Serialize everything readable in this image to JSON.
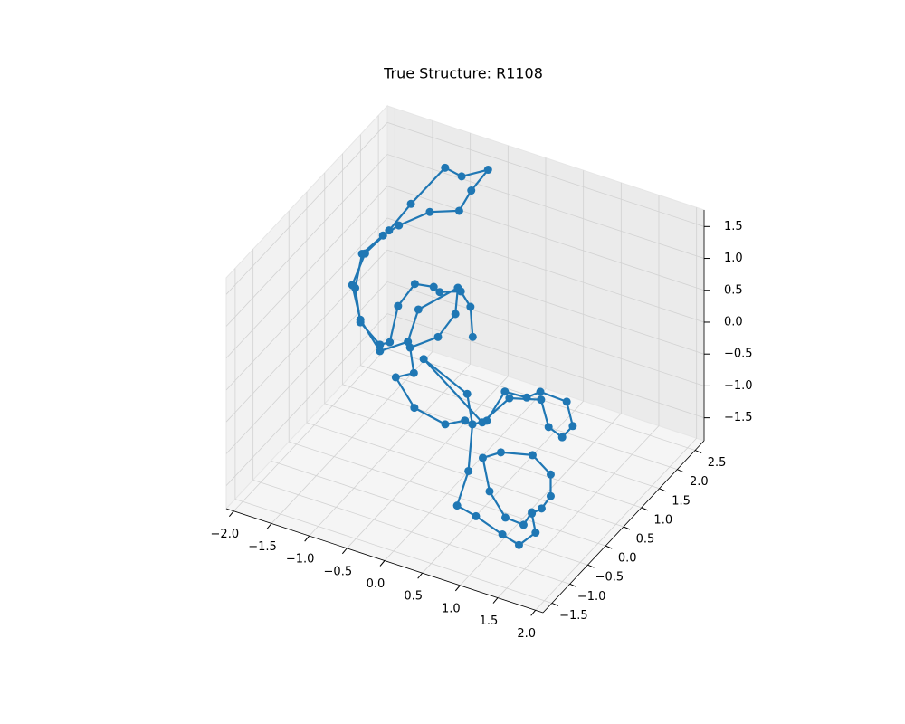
{
  "chart_data": {
    "type": "line3d",
    "title": "True Structure: R1108",
    "color": "#1f77b4",
    "grid": true,
    "x": [
      0.1,
      0.07,
      -0.38,
      -0.66,
      -0.74,
      -0.99,
      -0.89,
      -1.0,
      -1.13,
      -1.39,
      -1.78,
      -1.69,
      -1.73,
      -1.52,
      -1.11,
      -0.72,
      -0.56,
      -0.66,
      -1.01,
      -1.23,
      -1.36,
      -1.65,
      -1.65,
      -1.82,
      -1.39,
      -1.13,
      -0.76,
      -0.62,
      -0.42,
      -0.13,
      -0.36,
      -0.73,
      -0.68,
      -0.92,
      -0.46,
      -0.05,
      0.21,
      0.31,
      0.5,
      0.74,
      1.03,
      1.21,
      1.56,
      1.64,
      1.5,
      1.32,
      1.22,
      0.8,
      0.44,
      -0.55,
      0.24,
      0.31,
      0.58,
      0.43,
      0.68,
      1.03,
      1.25,
      1.47,
      1.42,
      1.55,
      1.67,
      1.67,
      1.43,
      1.01,
      0.77,
      0.86,
      1.07,
      1.31,
      1.42
    ],
    "y": [
      0.5,
      0.5,
      1.18,
      1.18,
      1.18,
      1.18,
      0.5,
      0.5,
      0.5,
      0.5,
      1.18,
      1.18,
      1.85,
      1.85,
      1.85,
      1.85,
      1.85,
      2.53,
      2.53,
      2.53,
      1.85,
      1.85,
      1.18,
      1.18,
      0.5,
      0.5,
      0.5,
      0.5,
      1.18,
      0.5,
      0.5,
      0.5,
      0.5,
      0.5,
      0.05,
      0.05,
      0.05,
      0.05,
      0.05,
      0.05,
      0.05,
      0.05,
      0.05,
      0.05,
      0.05,
      0.05,
      0.05,
      0.05,
      0.05,
      0.5,
      0.05,
      0.05,
      -0.63,
      -0.63,
      -0.63,
      -0.63,
      -0.63,
      -0.63,
      -0.63,
      -0.63,
      -0.63,
      -0.63,
      -0.63,
      -0.63,
      -0.63,
      -0.63,
      -0.63,
      -0.63,
      -0.63
    ],
    "z": [
      0.34,
      0.8,
      0.46,
      0.34,
      0.39,
      0.34,
      0.44,
      -0.17,
      -0.26,
      -0.01,
      -0.03,
      0.54,
      0.41,
      0.65,
      1.02,
      1.19,
      1.57,
      1.45,
      1.21,
      1.26,
      1.05,
      0.52,
      0.56,
      0.0,
      0.03,
      -0.36,
      -0.07,
      0.49,
      0.5,
      0.61,
      0.16,
      -0.15,
      -0.53,
      -0.69,
      -0.72,
      -0.82,
      -0.66,
      -0.68,
      -0.55,
      0.0,
      0.02,
      0.18,
      0.16,
      -0.19,
      -0.42,
      -0.33,
      0.06,
      -0.08,
      -0.6,
      -0.26,
      -0.23,
      -0.68,
      -0.9,
      -1.5,
      -1.57,
      -1.72,
      -1.8,
      -1.52,
      -1.24,
      -1.11,
      -0.87,
      -0.53,
      -0.32,
      -0.44,
      -0.62,
      -1.11,
      -1.44,
      -1.46,
      -1.22
    ],
    "xlim": [
      -2.1,
      2.1
    ],
    "ylim": [
      -1.75,
      2.75
    ],
    "zlim": [
      -1.86,
      1.76
    ],
    "xticks": [
      {
        "value": -2,
        "label": "−2.0"
      },
      {
        "value": -1.5,
        "label": "−1.5"
      },
      {
        "value": -1,
        "label": "−1.0"
      },
      {
        "value": -0.5,
        "label": "−0.5"
      },
      {
        "value": 0,
        "label": "0.0"
      },
      0.5,
      {
        "value": 1,
        "label": "1.0"
      },
      1.5,
      {
        "value": 2,
        "label": "2.0"
      }
    ],
    "yticks": [
      {
        "value": -1.5,
        "label": "−1.5"
      },
      {
        "value": -1,
        "label": "−1.0"
      },
      {
        "value": -0.5,
        "label": "−0.5"
      },
      {
        "value": 0,
        "label": "0.0"
      },
      0.5,
      {
        "value": 1,
        "label": "1.0"
      },
      1.5,
      {
        "value": 2,
        "label": "2.0"
      },
      2.5
    ],
    "zticks": [
      {
        "value": -1.5,
        "label": "−1.5"
      },
      {
        "value": -1,
        "label": "−1.0"
      },
      {
        "value": -0.5,
        "label": "−0.5"
      },
      {
        "value": 0,
        "label": "0.0"
      },
      0.5,
      {
        "value": 1,
        "label": "1.0"
      },
      1.5
    ]
  }
}
